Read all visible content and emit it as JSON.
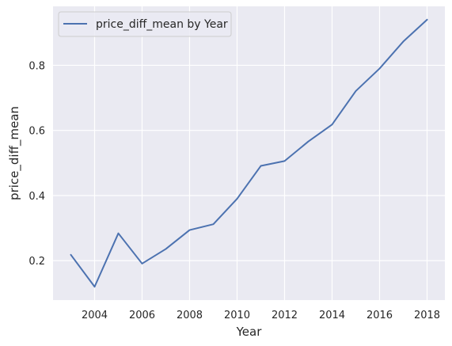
{
  "chart_data": {
    "type": "line",
    "title": "",
    "xlabel": "Year",
    "ylabel": "price_diff_mean",
    "xlim": [
      2002.25,
      2018.75
    ],
    "ylim": [
      0.079,
      0.981
    ],
    "xticks": [
      2004,
      2006,
      2008,
      2010,
      2012,
      2014,
      2016,
      2018
    ],
    "xtick_labels": [
      "2004",
      "2006",
      "2008",
      "2010",
      "2012",
      "2014",
      "2016",
      "2018"
    ],
    "yticks": [
      0.2,
      0.4,
      0.6,
      0.8
    ],
    "ytick_labels": [
      "0.2",
      "0.4",
      "0.6",
      "0.8"
    ],
    "grid": true,
    "legend_position": "top-left",
    "background_color": "#eaeaf2",
    "grid_color": "#ffffff",
    "series": [
      {
        "name": "price_diff_mean by Year",
        "color": "#4c72b0",
        "x": [
          2003,
          2004,
          2005,
          2006,
          2007,
          2008,
          2009,
          2010,
          2011,
          2012,
          2013,
          2014,
          2015,
          2016,
          2017,
          2018
        ],
        "y": [
          0.218,
          0.12,
          0.284,
          0.191,
          0.236,
          0.294,
          0.312,
          0.39,
          0.491,
          0.506,
          0.566,
          0.618,
          0.721,
          0.79,
          0.873,
          0.94
        ]
      }
    ]
  }
}
